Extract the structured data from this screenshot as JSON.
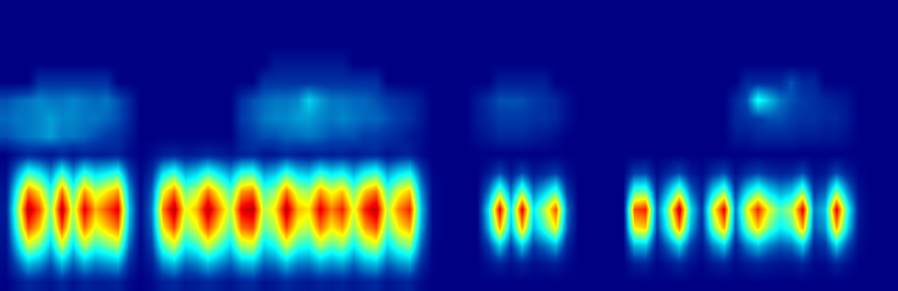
{
  "chart_data": {
    "type": "heatmap",
    "color": "Jet",
    "color_range": [
      0,
      1
    ],
    "tick_labels": false,
    "xlim": [
      -0.5,
      79.5
    ],
    "ylim": [
      15.5,
      -0.5
    ],
    "cells": [
      [
        0,
        0,
        0,
        0,
        0,
        0,
        0,
        0,
        0,
        0,
        0,
        0,
        0,
        0,
        0,
        0,
        0,
        0,
        0,
        0,
        0,
        0,
        0,
        0,
        0,
        0,
        0,
        0,
        0,
        0,
        0,
        0,
        0,
        0,
        0,
        0,
        0,
        0,
        0,
        0,
        0,
        0,
        0,
        0,
        0,
        0,
        0,
        0,
        0,
        0,
        0,
        0,
        0,
        0,
        0,
        0,
        0,
        0,
        0,
        0,
        0,
        0,
        0,
        0,
        0,
        0,
        0,
        0,
        0,
        0,
        0,
        0,
        0,
        0,
        0,
        0,
        0,
        0,
        0,
        0
      ],
      [
        0,
        0,
        0,
        0,
        0,
        0,
        0,
        0,
        0,
        0,
        0,
        0,
        0,
        0,
        0,
        0,
        0,
        0,
        0,
        0,
        0,
        0,
        0,
        0,
        0,
        0,
        0,
        0,
        0,
        0,
        0,
        0,
        0,
        0,
        0,
        0,
        0,
        0,
        0,
        0,
        0,
        0,
        0,
        0,
        0,
        0,
        0,
        0,
        0,
        0,
        0,
        0,
        0,
        0,
        0,
        0,
        0,
        0,
        0,
        0,
        0,
        0,
        0,
        0,
        0,
        0,
        0,
        0,
        0,
        0,
        0,
        0,
        0,
        0,
        0,
        0,
        0,
        0,
        0,
        0
      ],
      [
        0,
        0,
        0,
        0,
        0,
        0,
        0,
        0,
        0,
        0,
        0,
        0,
        0,
        0,
        0,
        0,
        0,
        0,
        0,
        0,
        0,
        0,
        0,
        0,
        0,
        0,
        0,
        0,
        0,
        0,
        0,
        0,
        0,
        0,
        0,
        0,
        0,
        0,
        0,
        0,
        0,
        0,
        0,
        0,
        0,
        0,
        0,
        0,
        0,
        0,
        0,
        0,
        0,
        0,
        0,
        0,
        0,
        0,
        0,
        0,
        0,
        0,
        0,
        0,
        0,
        0,
        0,
        0,
        0,
        0,
        0,
        0,
        0,
        0,
        0,
        0,
        0,
        0,
        0,
        0
      ],
      [
        0,
        0,
        0,
        0,
        0,
        0,
        0,
        0,
        0,
        0,
        0,
        0,
        0,
        0,
        0,
        0,
        0,
        0,
        0,
        0,
        0,
        0,
        0,
        0,
        0.05,
        0.05,
        0.05,
        0.05,
        0.05,
        0.05,
        0.05,
        0,
        0,
        0,
        0,
        0,
        0,
        0,
        0,
        0,
        0,
        0,
        0,
        0,
        0,
        0,
        0,
        0,
        0,
        0,
        0,
        0,
        0,
        0,
        0,
        0,
        0,
        0,
        0,
        0,
        0,
        0,
        0,
        0,
        0,
        0,
        0,
        0,
        0,
        0,
        0,
        0,
        0,
        0,
        0,
        0,
        0,
        0,
        0,
        0
      ],
      [
        0,
        0,
        0,
        0.1,
        0.1,
        0.1,
        0.1,
        0.1,
        0.1,
        0.1,
        0,
        0,
        0,
        0,
        0,
        0,
        0,
        0,
        0,
        0,
        0,
        0,
        0,
        0.1,
        0.1,
        0.1,
        0.1,
        0.1,
        0.1,
        0.1,
        0.1,
        0.1,
        0.1,
        0.1,
        0,
        0,
        0,
        0,
        0,
        0,
        0,
        0,
        0,
        0,
        0.06,
        0.06,
        0.06,
        0.06,
        0.06,
        0,
        0,
        0,
        0,
        0,
        0,
        0,
        0,
        0,
        0,
        0,
        0,
        0,
        0,
        0,
        0,
        0,
        0.08,
        0.08,
        0.08,
        0.08,
        0.15,
        0.08,
        0.08,
        0,
        0,
        0,
        0,
        0,
        0,
        0
      ],
      [
        0.15,
        0.18,
        0.2,
        0.22,
        0.2,
        0.2,
        0.22,
        0.2,
        0.18,
        0.2,
        0.15,
        0.08,
        0,
        0,
        0,
        0,
        0,
        0,
        0,
        0,
        0,
        0.1,
        0.15,
        0.18,
        0.2,
        0.2,
        0.22,
        0.32,
        0.25,
        0.2,
        0.2,
        0.18,
        0.18,
        0.15,
        0.12,
        0.1,
        0.08,
        0.05,
        0,
        0,
        0,
        0,
        0.05,
        0.1,
        0.15,
        0.15,
        0.15,
        0.12,
        0.1,
        0.08,
        0.03,
        0,
        0,
        0,
        0,
        0,
        0,
        0,
        0,
        0,
        0,
        0,
        0,
        0,
        0,
        0.08,
        0.15,
        0.4,
        0.3,
        0.2,
        0.15,
        0.12,
        0.1,
        0.08,
        0.06,
        0.04,
        0,
        0,
        0,
        0
      ],
      [
        0.18,
        0.2,
        0.2,
        0.22,
        0.25,
        0.22,
        0.22,
        0.2,
        0.2,
        0.18,
        0.15,
        0.08,
        0,
        0,
        0,
        0,
        0,
        0,
        0,
        0,
        0,
        0.12,
        0.15,
        0.2,
        0.22,
        0.22,
        0.25,
        0.25,
        0.22,
        0.2,
        0.22,
        0.2,
        0.18,
        0.18,
        0.15,
        0.12,
        0.1,
        0.05,
        0,
        0,
        0,
        0,
        0.05,
        0.08,
        0.12,
        0.12,
        0.12,
        0.1,
        0.1,
        0.08,
        0.03,
        0,
        0,
        0,
        0,
        0,
        0,
        0,
        0,
        0,
        0,
        0,
        0,
        0,
        0,
        0.08,
        0.1,
        0.12,
        0.15,
        0.15,
        0.12,
        0.1,
        0.1,
        0.08,
        0.08,
        0.05,
        0,
        0,
        0,
        0
      ],
      [
        0.15,
        0.18,
        0.2,
        0.22,
        0.25,
        0.2,
        0.2,
        0.18,
        0.15,
        0.12,
        0.1,
        0.05,
        0,
        0,
        0,
        0,
        0,
        0,
        0,
        0,
        0,
        0.08,
        0.12,
        0.15,
        0.15,
        0.18,
        0.18,
        0.2,
        0.18,
        0.15,
        0.15,
        0.15,
        0.12,
        0.12,
        0.1,
        0.08,
        0.05,
        0.03,
        0,
        0,
        0,
        0,
        0.03,
        0.05,
        0.08,
        0.08,
        0.08,
        0.06,
        0.05,
        0.03,
        0,
        0,
        0,
        0,
        0,
        0,
        0,
        0,
        0,
        0,
        0,
        0,
        0,
        0,
        0,
        0.05,
        0.05,
        0.08,
        0.08,
        0.08,
        0.08,
        0.06,
        0.06,
        0.05,
        0.05,
        0.03,
        0,
        0,
        0,
        0
      ],
      [
        0,
        0.04,
        0.08,
        0.06,
        0.04,
        0.08,
        0.04,
        0.07,
        0.06,
        0.06,
        0.07,
        0.02,
        0,
        0.02,
        0.06,
        0.08,
        0.05,
        0.06,
        0.08,
        0.06,
        0.04,
        0.07,
        0.08,
        0.04,
        0.05,
        0.08,
        0.06,
        0.05,
        0.07,
        0.06,
        0.07,
        0.05,
        0.07,
        0.08,
        0.04,
        0.06,
        0.07,
        0.02,
        0,
        0,
        0,
        0,
        0,
        0,
        0,
        0,
        0,
        0,
        0,
        0,
        0,
        0,
        0,
        0,
        0,
        0,
        0,
        0,
        0,
        0,
        0,
        0,
        0,
        0,
        0,
        0,
        0,
        0,
        0,
        0,
        0,
        0,
        0,
        0,
        0,
        0,
        0,
        0,
        0,
        0
      ],
      [
        0.02,
        0.23,
        0.43,
        0.36,
        0.23,
        0.43,
        0.25,
        0.41,
        0.32,
        0.36,
        0.41,
        0.14,
        0.01,
        0.09,
        0.34,
        0.43,
        0.27,
        0.32,
        0.43,
        0.34,
        0.25,
        0.41,
        0.43,
        0.25,
        0.29,
        0.43,
        0.32,
        0.29,
        0.41,
        0.34,
        0.38,
        0.27,
        0.38,
        0.43,
        0.25,
        0.34,
        0.38,
        0.14,
        0.01,
        0,
        0,
        0,
        0,
        0.05,
        0.14,
        0.05,
        0.14,
        0.05,
        0.08,
        0.12,
        0.03,
        0,
        0,
        0,
        0,
        0,
        0.12,
        0.13,
        0.02,
        0.08,
        0.14,
        0.05,
        0.02,
        0.09,
        0.14,
        0.03,
        0.09,
        0.13,
        0.09,
        0.07,
        0.08,
        0.14,
        0.03,
        0.05,
        0.14,
        0.06,
        0.01,
        0,
        0,
        0
      ],
      [
        0.04,
        0.4,
        0.76,
        0.64,
        0.4,
        0.76,
        0.44,
        0.72,
        0.56,
        0.64,
        0.72,
        0.24,
        0.02,
        0.16,
        0.6,
        0.76,
        0.48,
        0.56,
        0.76,
        0.6,
        0.44,
        0.72,
        0.76,
        0.44,
        0.52,
        0.76,
        0.56,
        0.52,
        0.72,
        0.6,
        0.68,
        0.48,
        0.68,
        0.76,
        0.44,
        0.6,
        0.68,
        0.24,
        0.02,
        0,
        0,
        0,
        0,
        0.19,
        0.5,
        0.19,
        0.5,
        0.19,
        0.3,
        0.44,
        0.11,
        0,
        0,
        0,
        0,
        0,
        0.44,
        0.47,
        0.08,
        0.28,
        0.52,
        0.19,
        0.06,
        0.33,
        0.5,
        0.11,
        0.33,
        0.47,
        0.33,
        0.25,
        0.3,
        0.5,
        0.11,
        0.17,
        0.5,
        0.22,
        0.03,
        0,
        0,
        0
      ],
      [
        0.05,
        0.5,
        0.95,
        0.8,
        0.5,
        0.95,
        0.55,
        0.9,
        0.7,
        0.8,
        0.9,
        0.3,
        0.02,
        0.2,
        0.75,
        0.95,
        0.6,
        0.7,
        0.95,
        0.75,
        0.55,
        0.9,
        0.95,
        0.55,
        0.65,
        0.95,
        0.7,
        0.65,
        0.9,
        0.75,
        0.85,
        0.6,
        0.85,
        0.95,
        0.55,
        0.75,
        0.85,
        0.3,
        0.02,
        0,
        0,
        0,
        0,
        0.35,
        0.9,
        0.35,
        0.9,
        0.35,
        0.55,
        0.8,
        0.2,
        0,
        0,
        0,
        0,
        0,
        0.8,
        0.85,
        0.15,
        0.5,
        0.95,
        0.35,
        0.1,
        0.6,
        0.9,
        0.2,
        0.6,
        0.85,
        0.6,
        0.45,
        0.55,
        0.9,
        0.2,
        0.3,
        0.9,
        0.4,
        0.05,
        0,
        0,
        0
      ],
      [
        0.04,
        0.43,
        0.81,
        0.68,
        0.43,
        0.81,
        0.47,
        0.77,
        0.6,
        0.68,
        0.77,
        0.26,
        0.02,
        0.17,
        0.64,
        0.81,
        0.51,
        0.6,
        0.81,
        0.64,
        0.47,
        0.77,
        0.81,
        0.47,
        0.55,
        0.81,
        0.6,
        0.55,
        0.77,
        0.64,
        0.72,
        0.51,
        0.72,
        0.81,
        0.47,
        0.64,
        0.72,
        0.26,
        0.02,
        0,
        0,
        0,
        0,
        0.28,
        0.72,
        0.28,
        0.72,
        0.28,
        0.44,
        0.64,
        0.16,
        0,
        0,
        0,
        0,
        0,
        0.64,
        0.68,
        0.12,
        0.4,
        0.76,
        0.28,
        0.08,
        0.48,
        0.72,
        0.16,
        0.48,
        0.68,
        0.48,
        0.36,
        0.44,
        0.72,
        0.16,
        0.24,
        0.72,
        0.32,
        0.04,
        0,
        0,
        0
      ],
      [
        0.03,
        0.3,
        0.57,
        0.48,
        0.3,
        0.57,
        0.33,
        0.54,
        0.42,
        0.48,
        0.54,
        0.18,
        0.01,
        0.12,
        0.45,
        0.57,
        0.36,
        0.42,
        0.57,
        0.45,
        0.33,
        0.54,
        0.57,
        0.33,
        0.39,
        0.57,
        0.42,
        0.39,
        0.54,
        0.45,
        0.51,
        0.36,
        0.51,
        0.57,
        0.33,
        0.45,
        0.51,
        0.18,
        0.01,
        0,
        0,
        0,
        0,
        0.12,
        0.32,
        0.12,
        0.32,
        0.12,
        0.19,
        0.28,
        0.07,
        0,
        0,
        0,
        0,
        0,
        0.28,
        0.3,
        0.05,
        0.18,
        0.33,
        0.12,
        0.04,
        0.21,
        0.32,
        0.07,
        0.21,
        0.3,
        0.21,
        0.16,
        0.19,
        0.32,
        0.07,
        0.11,
        0.32,
        0.14,
        0.02,
        0,
        0,
        0
      ],
      [
        0.02,
        0.15,
        0.29,
        0.24,
        0.15,
        0.29,
        0.17,
        0.27,
        0.21,
        0.24,
        0.27,
        0.09,
        0.01,
        0.06,
        0.23,
        0.29,
        0.18,
        0.21,
        0.29,
        0.23,
        0.17,
        0.27,
        0.29,
        0.17,
        0.2,
        0.29,
        0.21,
        0.2,
        0.27,
        0.23,
        0.26,
        0.18,
        0.26,
        0.29,
        0.17,
        0.23,
        0.26,
        0.09,
        0.01,
        0,
        0,
        0,
        0,
        0.03,
        0.07,
        0.03,
        0.07,
        0.03,
        0.04,
        0.06,
        0.02,
        0,
        0,
        0,
        0,
        0,
        0.06,
        0.07,
        0.01,
        0.04,
        0.08,
        0.03,
        0.01,
        0.05,
        0.07,
        0.02,
        0.05,
        0.07,
        0.05,
        0.04,
        0.04,
        0.07,
        0.02,
        0.02,
        0.07,
        0.03,
        0,
        0,
        0,
        0
      ],
      [
        0,
        0.04,
        0.08,
        0.06,
        0.04,
        0.08,
        0.04,
        0.07,
        0.06,
        0.06,
        0.07,
        0.02,
        0,
        0.02,
        0.06,
        0.08,
        0.05,
        0.06,
        0.08,
        0.06,
        0.04,
        0.07,
        0.08,
        0.04,
        0.05,
        0.08,
        0.06,
        0.05,
        0.07,
        0.06,
        0.07,
        0.05,
        0.07,
        0.08,
        0.04,
        0.06,
        0.07,
        0.02,
        0,
        0,
        0,
        0,
        0,
        0,
        0,
        0,
        0,
        0,
        0,
        0,
        0,
        0,
        0,
        0,
        0,
        0,
        0,
        0,
        0,
        0,
        0,
        0,
        0,
        0,
        0,
        0,
        0,
        0,
        0,
        0,
        0,
        0,
        0,
        0,
        0,
        0,
        0,
        0,
        0,
        0
      ]
    ]
  }
}
